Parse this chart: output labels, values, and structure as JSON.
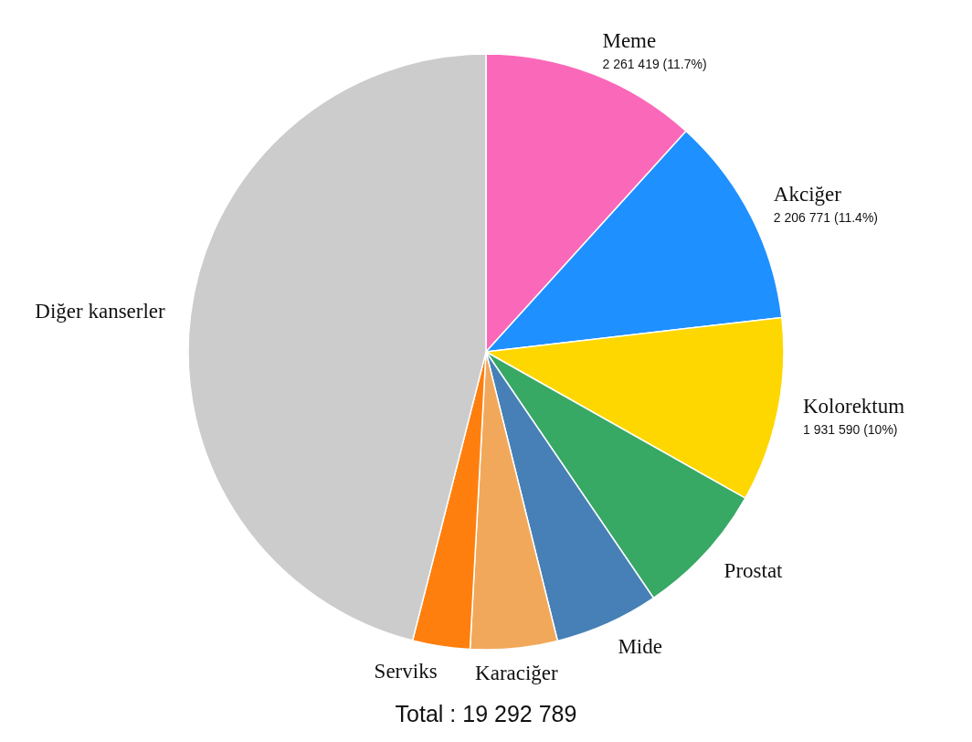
{
  "chart_data": {
    "type": "pie",
    "categories": [
      "Meme",
      "Akciğer",
      "Kolorektum",
      "Prostat",
      "Mide",
      "Karaciğer",
      "Serviks",
      "Diğer kanserler"
    ],
    "values": [
      2261419,
      2206771,
      1931590,
      1410000,
      1090000,
      910000,
      600000,
      8880000
    ],
    "colors": [
      "#fa69b9",
      "#1e90ff",
      "#ffd700",
      "#38a865",
      "#4680b6",
      "#f2a85a",
      "#ff7f0e",
      "#cccccc"
    ],
    "value_labels": [
      "2 261 419 (11.7%)",
      "2 206 771 (11.4%)",
      "1 931 590 (10%)",
      null,
      null,
      null,
      null,
      null
    ],
    "annotations": [
      "Total : 19 292 789"
    ]
  }
}
